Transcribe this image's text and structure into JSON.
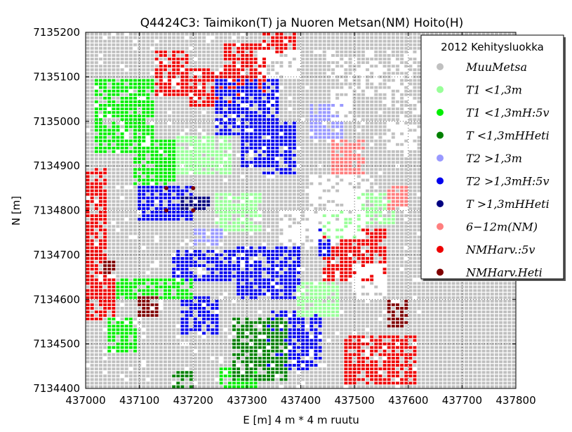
{
  "chart_data": {
    "type": "scatter",
    "title": "Q4424C3: Taimikon(T) ja Nuoren Metsan(NM) Hoito(H)",
    "xlabel": "E [m]  4 m * 4 m ruutu",
    "ylabel": "N [m]",
    "xlim": [
      437000,
      437800
    ],
    "ylim": [
      7134400,
      7135200
    ],
    "x_ticks": [
      "437000",
      "437100",
      "437200",
      "437300",
      "437400",
      "437500",
      "437600",
      "437700",
      "437800"
    ],
    "y_ticks": [
      "7134400",
      "7134500",
      "7134600",
      "7134700",
      "7134800",
      "7134900",
      "7135000",
      "7135100",
      "7135200"
    ],
    "cell_size_m": 4,
    "grid": true,
    "legend_position": "top-right",
    "legend_title": "2012 Kehitysluokka",
    "series": [
      {
        "name": "MuuMetsa",
        "color": "#c0c0c0"
      },
      {
        "name": "T1 <1,3m",
        "color": "#99ff99"
      },
      {
        "name": "T1 <1,3mH:5v",
        "color": "#00ee00"
      },
      {
        "name": "T <1,3mHHeti",
        "color": "#008000"
      },
      {
        "name": "T2 >1,3m",
        "color": "#9999ff"
      },
      {
        "name": "T2 >1,3mH:5v",
        "color": "#0000ee"
      },
      {
        "name": "T >1,3mHHeti",
        "color": "#000080"
      },
      {
        "name": "6−12m(NM)",
        "color": "#ff7f7f"
      },
      {
        "name": "NMHarv.:5v",
        "color": "#ee0000"
      },
      {
        "name": "NMHarv.Heti",
        "color": "#800000"
      }
    ],
    "regions": [
      {
        "series": "NMHarv.:5v",
        "e": [
          437130,
          437190
        ],
        "n": [
          7135060,
          7135160
        ]
      },
      {
        "series": "NMHarv.:5v",
        "e": [
          437190,
          437280
        ],
        "n": [
          7135030,
          7135120
        ]
      },
      {
        "series": "NMHarv.:5v",
        "e": [
          437260,
          437340
        ],
        "n": [
          7135060,
          7135180
        ]
      },
      {
        "series": "NMHarv.:5v",
        "e": [
          437330,
          437390
        ],
        "n": [
          7135150,
          7135200
        ]
      },
      {
        "series": "NMHarv.:5v",
        "e": [
          437000,
          437040
        ],
        "n": [
          7134600,
          7134900
        ]
      },
      {
        "series": "NMHarv.:5v",
        "e": [
          437000,
          437060
        ],
        "n": [
          7134550,
          7134650
        ]
      },
      {
        "series": "NMHarv.:5v",
        "e": [
          437480,
          437620
        ],
        "n": [
          7134410,
          7134520
        ]
      },
      {
        "series": "NMHarv.:5v",
        "e": [
          437440,
          437560
        ],
        "n": [
          7134640,
          7134760
        ]
      },
      {
        "series": "T2 >1,3mH:5v",
        "e": [
          437240,
          437360
        ],
        "n": [
          7134970,
          7135100
        ]
      },
      {
        "series": "T2 >1,3mH:5v",
        "e": [
          437330,
          437390
        ],
        "n": [
          7134880,
          7135000
        ]
      },
      {
        "series": "T2 >1,3mH:5v",
        "e": [
          437290,
          437330
        ],
        "n": [
          7134900,
          7134990
        ]
      },
      {
        "series": "T2 >1,3mH:5v",
        "e": [
          437100,
          437200
        ],
        "n": [
          7134780,
          7134860
        ]
      },
      {
        "series": "T2 >1,3mH:5v",
        "e": [
          437160,
          437300
        ],
        "n": [
          7134640,
          7134710
        ]
      },
      {
        "series": "T2 >1,3mH:5v",
        "e": [
          437280,
          437400
        ],
        "n": [
          7134600,
          7134720
        ]
      },
      {
        "series": "T2 >1,3mH:5v",
        "e": [
          437180,
          437250
        ],
        "n": [
          7134520,
          7134610
        ]
      },
      {
        "series": "T2 >1,3mH:5v",
        "e": [
          437340,
          437440
        ],
        "n": [
          7134440,
          7134580
        ]
      },
      {
        "series": "T2 >1,3mH:5v",
        "e": [
          437430,
          437460
        ],
        "n": [
          7134700,
          7134790
        ]
      },
      {
        "series": "T1 <1,3mH:5v",
        "e": [
          437020,
          437130
        ],
        "n": [
          7134930,
          7135100
        ]
      },
      {
        "series": "T1 <1,3mH:5v",
        "e": [
          437090,
          437170
        ],
        "n": [
          7134860,
          7134960
        ]
      },
      {
        "series": "T1 <1,3mH:5v",
        "e": [
          437060,
          437200
        ],
        "n": [
          7134600,
          7134650
        ]
      },
      {
        "series": "T1 <1,3mH:5v",
        "e": [
          437040,
          437100
        ],
        "n": [
          7134480,
          7134560
        ]
      },
      {
        "series": "T1 <1,3mH:5v",
        "e": [
          437250,
          437320
        ],
        "n": [
          7134400,
          7134450
        ]
      },
      {
        "series": "T1 <1,3m",
        "e": [
          437170,
          437270
        ],
        "n": [
          7134880,
          7134970
        ]
      },
      {
        "series": "T1 <1,3m",
        "e": [
          437240,
          437330
        ],
        "n": [
          7134750,
          7134840
        ]
      },
      {
        "series": "T1 <1,3m",
        "e": [
          437390,
          437470
        ],
        "n": [
          7134560,
          7134640
        ]
      },
      {
        "series": "T1 <1,3m",
        "e": [
          437500,
          437580
        ],
        "n": [
          7134770,
          7134840
        ]
      },
      {
        "series": "T1 <1,3m",
        "e": [
          437440,
          437510
        ],
        "n": [
          7134740,
          7134800
        ]
      },
      {
        "series": "T <1,3mHHeti",
        "e": [
          437270,
          437380
        ],
        "n": [
          7134420,
          7134560
        ]
      },
      {
        "series": "T <1,3mHHeti",
        "e": [
          437160,
          437200
        ],
        "n": [
          7134400,
          7134440
        ]
      },
      {
        "series": "T2 >1,3m",
        "e": [
          437420,
          437480
        ],
        "n": [
          7134960,
          7135040
        ]
      },
      {
        "series": "T2 >1,3m",
        "e": [
          437200,
          437260
        ],
        "n": [
          7134720,
          7134760
        ]
      },
      {
        "series": "6−12m(NM)",
        "e": [
          437460,
          437520
        ],
        "n": [
          7134880,
          7134960
        ]
      },
      {
        "series": "6−12m(NM)",
        "e": [
          437560,
          437600
        ],
        "n": [
          7134800,
          7134860
        ]
      },
      {
        "series": "NMHarv.Heti",
        "e": [
          437560,
          437600
        ],
        "n": [
          7134540,
          7134600
        ]
      },
      {
        "series": "NMHarv.Heti",
        "e": [
          437100,
          437140
        ],
        "n": [
          7134560,
          7134610
        ]
      },
      {
        "series": "NMHarv.Heti",
        "e": [
          437030,
          437060
        ],
        "n": [
          7134660,
          7134690
        ]
      },
      {
        "series": "T >1,3mHHeti",
        "e": [
          437180,
          437230
        ],
        "n": [
          7134800,
          7134830
        ]
      }
    ],
    "gaps": [
      {
        "e": [
          437320,
          437400
        ],
        "n": [
          7135100,
          7135160
        ]
      },
      {
        "e": [
          437420,
          437520
        ],
        "n": [
          7134740,
          7134880
        ]
      },
      {
        "e": [
          437360,
          437430
        ],
        "n": [
          7134720,
          7134800
        ]
      },
      {
        "e": [
          437500,
          437560
        ],
        "n": [
          7134600,
          7134680
        ]
      },
      {
        "e": [
          437460,
          437500
        ],
        "n": [
          7135000,
          7135080
        ]
      },
      {
        "e": [
          437560,
          437620
        ],
        "n": [
          7134940,
          7135000
        ]
      }
    ],
    "footprint": {
      "left_e": 437000,
      "right_edge": [
        [
          7135200,
          437420
        ],
        [
          7135160,
          437420
        ],
        [
          7135120,
          437450
        ],
        [
          7135080,
          437480
        ],
        [
          7135040,
          437560
        ],
        [
          7135000,
          437600
        ],
        [
          7134960,
          437620
        ],
        [
          7134920,
          437630
        ],
        [
          7134880,
          437630
        ],
        [
          7134840,
          437640
        ],
        [
          7134800,
          437640
        ],
        [
          7134760,
          437630
        ],
        [
          7134720,
          437620
        ],
        [
          7134680,
          437620
        ],
        [
          7134640,
          437650
        ],
        [
          7134600,
          437640
        ],
        [
          7134560,
          437640
        ],
        [
          7134520,
          437620
        ],
        [
          7134480,
          437620
        ],
        [
          7134440,
          437630
        ],
        [
          7134400,
          437630
        ]
      ],
      "background_right": {
        "e": [
          437630,
          437800
        ],
        "n": [
          7134400,
          7135200
        ],
        "series": "MuuMetsa"
      }
    },
    "markers": [
      {
        "e": 437150,
        "n": 7134850,
        "series": "NMHarv.Heti"
      },
      {
        "e": 437200,
        "n": 7134850,
        "series": "NMHarv.Heti"
      },
      {
        "e": 437150,
        "n": 7134800,
        "series": "NMHarv.Heti"
      },
      {
        "e": 437200,
        "n": 7134800,
        "series": "NMHarv.Heti"
      }
    ]
  }
}
